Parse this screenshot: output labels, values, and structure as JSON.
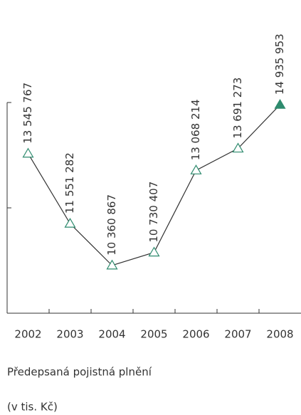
{
  "chart_data": {
    "type": "line",
    "title": "Předepsaná pojistná plnění",
    "subtitle": "(v tis. Kč)",
    "categories": [
      "2002",
      "2003",
      "2004",
      "2005",
      "2006",
      "2007",
      "2008"
    ],
    "values": [
      13545767,
      11551282,
      10360867,
      10730407,
      13068214,
      13691273,
      14935953
    ],
    "value_labels": [
      "13 545 767",
      "11 551 282",
      "10 360 867",
      "10 730 407",
      "13 068 214",
      "13 691 273",
      "14 935 953"
    ],
    "color": "#2e8b6e",
    "line_color": "#333333",
    "filled_last_marker": true,
    "ylim": [
      9000000,
      15000000
    ],
    "yticks": [
      9000000,
      12000000,
      15000000
    ]
  }
}
